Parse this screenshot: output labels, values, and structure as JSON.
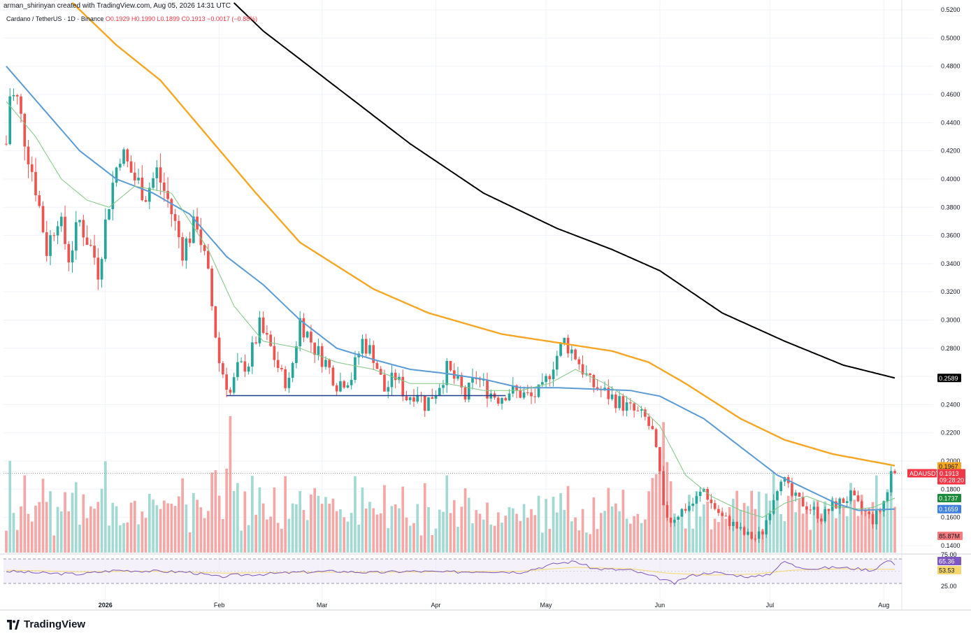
{
  "attribution": "arman_shirinyan created with TradingView.com, Aug 05, 2026 14:31 UTC",
  "legend": {
    "symbol": "Cardano / TetherUS · 1D · Binance",
    "open": "O0.1929",
    "high": "H0.1990",
    "low": "L0.1899",
    "close": "C0.1913",
    "change": "−0.0017 (−0.88%)"
  },
  "brand": "TradingView",
  "colors": {
    "up": "#26a69a",
    "down": "#ef5350",
    "ma_fast": "#81c784",
    "ma_mid": "#5b9bd5",
    "ma_slow": "#f5a623",
    "ma_long": "#000000",
    "support": "#1e3a8a",
    "rsi_line": "#7e57c2",
    "rsi_ma": "#f5d76e",
    "rsi_band": "#ede7f6"
  },
  "chart_data": {
    "type": "candlestick",
    "y_axis": {
      "ticks": [
        "0.5200",
        "0.5000",
        "0.4800",
        "0.4600",
        "0.4400",
        "0.4200",
        "0.4000",
        "0.3800",
        "0.3600",
        "0.3400",
        "0.3200",
        "0.3000",
        "0.2800",
        "0.2600",
        "0.2400",
        "0.2200",
        "0.2000",
        "0.1800",
        "0.1600",
        "0.1400"
      ],
      "ylim": [
        0.135,
        0.527
      ]
    },
    "x_axis": {
      "labels": [
        "2026",
        "Feb",
        "Mar",
        "Apr",
        "May",
        "Jun",
        "Jul",
        "Aug"
      ],
      "label_days": [
        27,
        58,
        86,
        117,
        147,
        178,
        208,
        239
      ]
    },
    "day_range": [
      0,
      242
    ],
    "anchors": [
      [
        0,
        0.425
      ],
      [
        1,
        0.46
      ],
      [
        3,
        0.455
      ],
      [
        5,
        0.43
      ],
      [
        8,
        0.395
      ],
      [
        11,
        0.35
      ],
      [
        14,
        0.375
      ],
      [
        17,
        0.345
      ],
      [
        20,
        0.37
      ],
      [
        24,
        0.345
      ],
      [
        25,
        0.335
      ],
      [
        28,
        0.385
      ],
      [
        31,
        0.42
      ],
      [
        35,
        0.4
      ],
      [
        38,
        0.39
      ],
      [
        41,
        0.405
      ],
      [
        44,
        0.385
      ],
      [
        48,
        0.35
      ],
      [
        52,
        0.37
      ],
      [
        55,
        0.33
      ],
      [
        58,
        0.27
      ],
      [
        61,
        0.248
      ],
      [
        63,
        0.265
      ],
      [
        66,
        0.27
      ],
      [
        69,
        0.295
      ],
      [
        72,
        0.28
      ],
      [
        75,
        0.26
      ],
      [
        77,
        0.255
      ],
      [
        80,
        0.3
      ],
      [
        84,
        0.28
      ],
      [
        87,
        0.27
      ],
      [
        90,
        0.255
      ],
      [
        94,
        0.26
      ],
      [
        97,
        0.285
      ],
      [
        100,
        0.275
      ],
      [
        103,
        0.25
      ],
      [
        106,
        0.26
      ],
      [
        109,
        0.245
      ],
      [
        112,
        0.25
      ],
      [
        114,
        0.24
      ],
      [
        117,
        0.25
      ],
      [
        120,
        0.265
      ],
      [
        123,
        0.255
      ],
      [
        125,
        0.245
      ],
      [
        128,
        0.26
      ],
      [
        131,
        0.25
      ],
      [
        134,
        0.245
      ],
      [
        137,
        0.25
      ],
      [
        140,
        0.248
      ],
      [
        143,
        0.245
      ],
      [
        146,
        0.25
      ],
      [
        149,
        0.27
      ],
      [
        152,
        0.285
      ],
      [
        155,
        0.275
      ],
      [
        157,
        0.265
      ],
      [
        159,
        0.255
      ],
      [
        162,
        0.25
      ],
      [
        165,
        0.245
      ],
      [
        168,
        0.24
      ],
      [
        171,
        0.235
      ],
      [
        174,
        0.23
      ],
      [
        176,
        0.22
      ],
      [
        178,
        0.19
      ],
      [
        179,
        0.165
      ],
      [
        181,
        0.158
      ],
      [
        184,
        0.165
      ],
      [
        187,
        0.17
      ],
      [
        190,
        0.18
      ],
      [
        192,
        0.17
      ],
      [
        195,
        0.16
      ],
      [
        198,
        0.155
      ],
      [
        201,
        0.148
      ],
      [
        204,
        0.145
      ],
      [
        206,
        0.15
      ],
      [
        209,
        0.175
      ],
      [
        211,
        0.19
      ],
      [
        214,
        0.175
      ],
      [
        217,
        0.17
      ],
      [
        220,
        0.165
      ],
      [
        222,
        0.16
      ],
      [
        225,
        0.168
      ],
      [
        228,
        0.172
      ],
      [
        230,
        0.175
      ],
      [
        232,
        0.168
      ],
      [
        234,
        0.163
      ],
      [
        236,
        0.158
      ],
      [
        238,
        0.165
      ],
      [
        240,
        0.178
      ],
      [
        241,
        0.192
      ],
      [
        242,
        0.1913
      ]
    ],
    "series": [
      {
        "name": "",
        "role": "ma_long",
        "anchors": [
          [
            62,
            0.525
          ],
          [
            70,
            0.505
          ],
          [
            90,
            0.465
          ],
          [
            110,
            0.425
          ],
          [
            130,
            0.39
          ],
          [
            150,
            0.365
          ],
          [
            165,
            0.35
          ],
          [
            178,
            0.335
          ],
          [
            195,
            0.305
          ],
          [
            212,
            0.285
          ],
          [
            228,
            0.268
          ],
          [
            242,
            0.2589
          ]
        ],
        "last_value": "0.2589"
      },
      {
        "name": "",
        "role": "ma_slow",
        "anchors": [
          [
            18,
            0.525
          ],
          [
            30,
            0.495
          ],
          [
            42,
            0.47
          ],
          [
            55,
            0.43
          ],
          [
            68,
            0.39
          ],
          [
            80,
            0.355
          ],
          [
            100,
            0.322
          ],
          [
            115,
            0.305
          ],
          [
            135,
            0.29
          ],
          [
            150,
            0.284
          ],
          [
            165,
            0.278
          ],
          [
            175,
            0.27
          ],
          [
            185,
            0.255
          ],
          [
            200,
            0.23
          ],
          [
            212,
            0.215
          ],
          [
            225,
            0.205
          ],
          [
            242,
            0.1967
          ]
        ],
        "last_value": "0.1967"
      },
      {
        "name": "",
        "role": "ma_mid",
        "anchors": [
          [
            0,
            0.48
          ],
          [
            10,
            0.45
          ],
          [
            20,
            0.42
          ],
          [
            30,
            0.4
          ],
          [
            40,
            0.39
          ],
          [
            50,
            0.375
          ],
          [
            60,
            0.345
          ],
          [
            70,
            0.325
          ],
          [
            80,
            0.3
          ],
          [
            90,
            0.28
          ],
          [
            100,
            0.272
          ],
          [
            110,
            0.265
          ],
          [
            120,
            0.262
          ],
          [
            130,
            0.258
          ],
          [
            140,
            0.252
          ],
          [
            150,
            0.252
          ],
          [
            160,
            0.251
          ],
          [
            170,
            0.25
          ],
          [
            178,
            0.246
          ],
          [
            190,
            0.23
          ],
          [
            200,
            0.21
          ],
          [
            210,
            0.19
          ],
          [
            218,
            0.18
          ],
          [
            226,
            0.17
          ],
          [
            232,
            0.165
          ],
          [
            242,
            0.1659
          ]
        ],
        "last_value": "0.1659"
      },
      {
        "name": "",
        "role": "ma_fast",
        "anchors": [
          [
            0,
            0.455
          ],
          [
            8,
            0.43
          ],
          [
            15,
            0.4
          ],
          [
            22,
            0.385
          ],
          [
            28,
            0.38
          ],
          [
            35,
            0.395
          ],
          [
            45,
            0.39
          ],
          [
            55,
            0.35
          ],
          [
            62,
            0.31
          ],
          [
            70,
            0.285
          ],
          [
            80,
            0.28
          ],
          [
            90,
            0.27
          ],
          [
            100,
            0.265
          ],
          [
            110,
            0.255
          ],
          [
            120,
            0.255
          ],
          [
            130,
            0.25
          ],
          [
            140,
            0.25
          ],
          [
            148,
            0.255
          ],
          [
            155,
            0.265
          ],
          [
            163,
            0.255
          ],
          [
            172,
            0.24
          ],
          [
            178,
            0.225
          ],
          [
            185,
            0.19
          ],
          [
            192,
            0.175
          ],
          [
            200,
            0.165
          ],
          [
            206,
            0.16
          ],
          [
            212,
            0.17
          ],
          [
            218,
            0.175
          ],
          [
            225,
            0.168
          ],
          [
            232,
            0.166
          ],
          [
            236,
            0.167
          ],
          [
            242,
            0.1737
          ]
        ],
        "last_value": "0.1737"
      }
    ],
    "support_line": {
      "value": 0.2464,
      "from_day": 60,
      "to_day": 136
    },
    "last_price": {
      "symbol": "ADAUSDT",
      "value": "0.1913",
      "countdown": "09:28:20"
    },
    "volume": {
      "last_value": "85.87M"
    },
    "rsi": {
      "levels": [
        "75.00",
        "25.00"
      ],
      "value": "65.36",
      "ma_value": "53.53",
      "anchors": [
        [
          0,
          50
        ],
        [
          10,
          46
        ],
        [
          20,
          44
        ],
        [
          30,
          52
        ],
        [
          40,
          50
        ],
        [
          50,
          48
        ],
        [
          58,
          38
        ],
        [
          62,
          42
        ],
        [
          70,
          44
        ],
        [
          80,
          48
        ],
        [
          90,
          50
        ],
        [
          100,
          47
        ],
        [
          110,
          50
        ],
        [
          120,
          48
        ],
        [
          130,
          50
        ],
        [
          140,
          48
        ],
        [
          150,
          66
        ],
        [
          155,
          70
        ],
        [
          160,
          55
        ],
        [
          170,
          52
        ],
        [
          178,
          35
        ],
        [
          182,
          25
        ],
        [
          186,
          40
        ],
        [
          192,
          48
        ],
        [
          198,
          42
        ],
        [
          204,
          38
        ],
        [
          208,
          45
        ],
        [
          212,
          70
        ],
        [
          215,
          60
        ],
        [
          220,
          55
        ],
        [
          226,
          58
        ],
        [
          232,
          55
        ],
        [
          236,
          52
        ],
        [
          240,
          72
        ],
        [
          242,
          65
        ]
      ],
      "ma_anchors": [
        [
          0,
          52
        ],
        [
          20,
          49
        ],
        [
          40,
          50
        ],
        [
          60,
          46
        ],
        [
          80,
          48
        ],
        [
          100,
          48
        ],
        [
          120,
          49
        ],
        [
          140,
          50
        ],
        [
          155,
          58
        ],
        [
          170,
          55
        ],
        [
          180,
          46
        ],
        [
          192,
          42
        ],
        [
          204,
          44
        ],
        [
          214,
          52
        ],
        [
          228,
          55
        ],
        [
          242,
          53.5
        ]
      ]
    }
  }
}
